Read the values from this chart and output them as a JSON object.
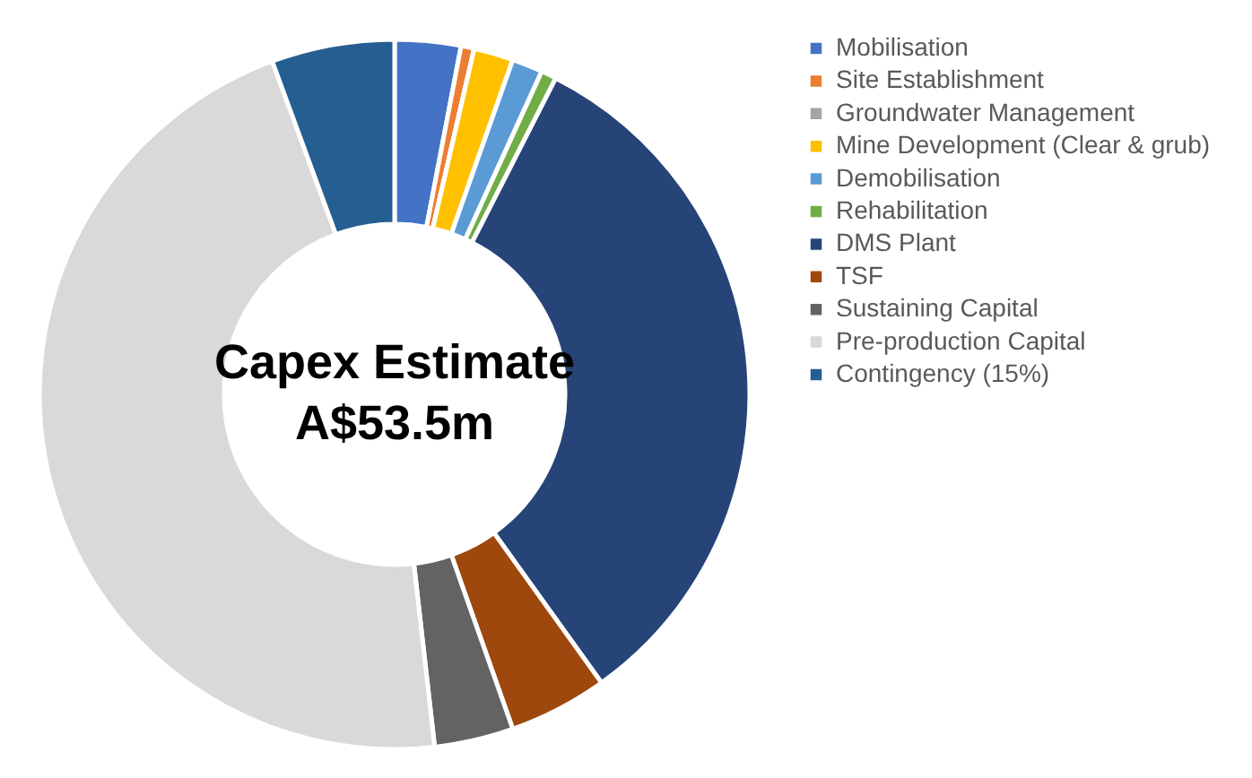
{
  "chart_data": {
    "type": "donut",
    "title": "Capex Estimate",
    "subtitle": "A$53.5m",
    "categories": [
      "Mobilisation",
      "Site Establishment",
      "Groundwater Management",
      "Mine Development (Clear & grub)",
      "Demobilisation",
      "Rehabilitation",
      "DMS Plant",
      "TSF",
      "Sustaining Capital",
      "Pre-production Capital",
      "Contingency (15%)"
    ],
    "values": [
      3.0,
      0.6,
      0,
      1.8,
      1.4,
      0.7,
      32.6,
      4.5,
      3.6,
      46.2,
      5.6
    ],
    "colors": [
      "#4472c4",
      "#ed7d31",
      "#a5a5a5",
      "#ffc000",
      "#5b9bd5",
      "#70ad47",
      "#264478",
      "#9e480e",
      "#636363",
      "#d9d9d9",
      "#255e91"
    ],
    "legend": "right"
  }
}
